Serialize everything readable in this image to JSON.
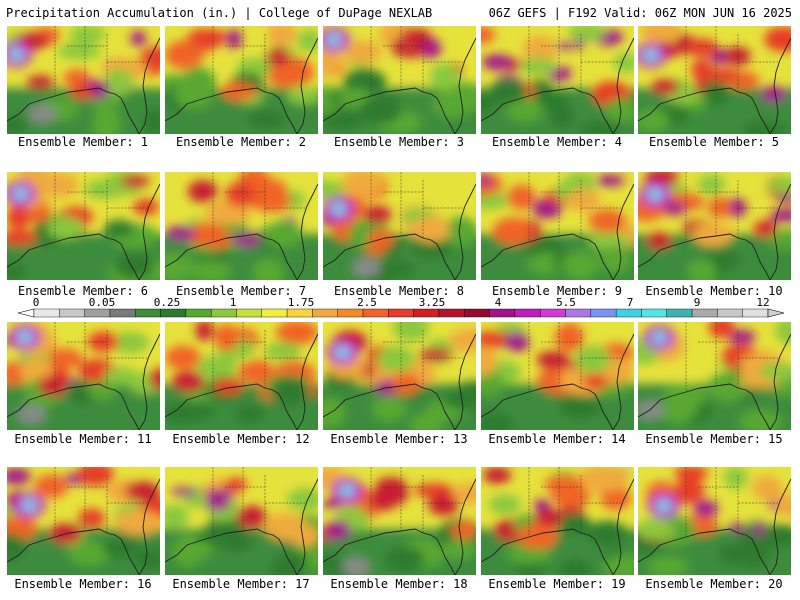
{
  "header": {
    "left_title": "Precipitation Accumulation (in.) | College of DuPage NEXLAB",
    "right_title": "06Z GEFS | F192 Valid: 06Z MON JUN 16 2025"
  },
  "panels": [
    {
      "label": "Ensemble Member: 1"
    },
    {
      "label": "Ensemble Member: 2"
    },
    {
      "label": "Ensemble Member: 3"
    },
    {
      "label": "Ensemble Member: 4"
    },
    {
      "label": "Ensemble Member: 5"
    },
    {
      "label": "Ensemble Member: 6"
    },
    {
      "label": "Ensemble Member: 7"
    },
    {
      "label": "Ensemble Member: 8"
    },
    {
      "label": "Ensemble Member: 9"
    },
    {
      "label": "Ensemble Member: 10"
    },
    {
      "label": "Ensemble Member: 11"
    },
    {
      "label": "Ensemble Member: 12"
    },
    {
      "label": "Ensemble Member: 13"
    },
    {
      "label": "Ensemble Member: 14"
    },
    {
      "label": "Ensemble Member: 15"
    },
    {
      "label": "Ensemble Member: 16"
    },
    {
      "label": "Ensemble Member: 17"
    },
    {
      "label": "Ensemble Member: 18"
    },
    {
      "label": "Ensemble Member: 19"
    },
    {
      "label": "Ensemble Member: 20"
    }
  ],
  "colorbar": {
    "tick_labels": [
      "0",
      "0.05",
      "0.25",
      "1",
      "1.75",
      "2.5",
      "3.25",
      "4",
      "5.5",
      "7",
      "9",
      "12"
    ],
    "colors": [
      "#e8e8e8",
      "#c8c8c8",
      "#a0a0a0",
      "#7a7a7a",
      "#3c8c3c",
      "#2f7a2f",
      "#58a830",
      "#8cc83c",
      "#c8e03c",
      "#f0f03c",
      "#fad23c",
      "#f0aa3c",
      "#f08c28",
      "#f06428",
      "#e63c28",
      "#d21e1e",
      "#b41432",
      "#960a32",
      "#a0148c",
      "#be1ebe",
      "#d23cd2",
      "#aa78e6",
      "#7896f0",
      "#3cd2e6",
      "#50e6e6",
      "#3cb4b4",
      "#aaaaaa",
      "#c8c8c8",
      "#e0e0e0"
    ]
  }
}
